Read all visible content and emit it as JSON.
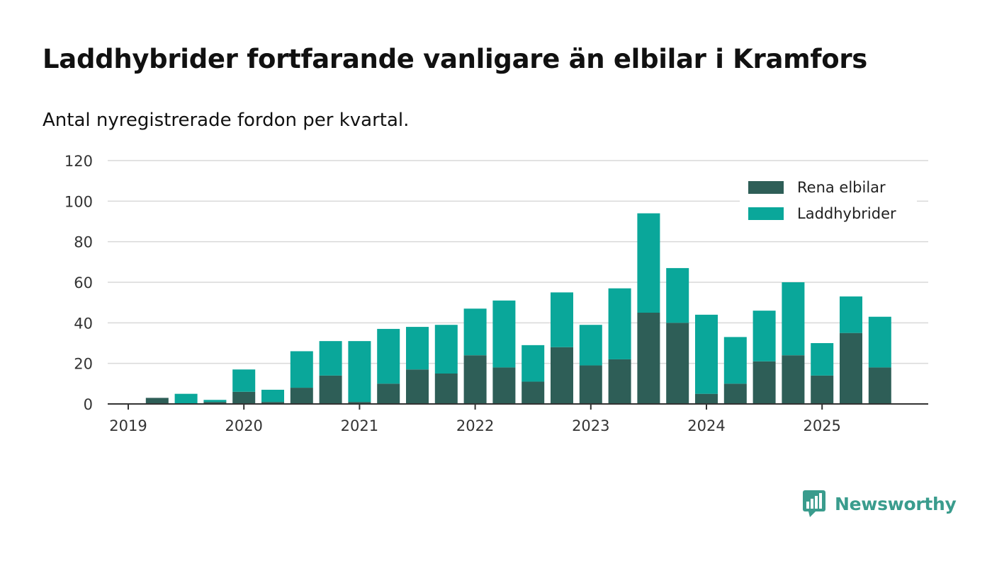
{
  "chart_data": {
    "type": "bar",
    "stacked": true,
    "title": "Laddhybrider fortfarande vanligare än elbilar i Kramfors",
    "subtitle": "Antal nyregistrerade fordon per kvartal.",
    "xlabel": "",
    "ylabel": "",
    "ylim": [
      0,
      120
    ],
    "yticks": [
      0,
      20,
      40,
      60,
      80,
      100,
      120
    ],
    "xticks": [
      "2019",
      "2020",
      "2021",
      "2022",
      "2023",
      "2024",
      "2025"
    ],
    "grid": true,
    "legend_position": "top-right",
    "categories": [
      "2019 Q1",
      "2019 Q2",
      "2019 Q3",
      "2019 Q4",
      "2020 Q1",
      "2020 Q2",
      "2020 Q3",
      "2020 Q4",
      "2021 Q1",
      "2021 Q2",
      "2021 Q3",
      "2021 Q4",
      "2022 Q1",
      "2022 Q2",
      "2022 Q3",
      "2022 Q4",
      "2023 Q1",
      "2023 Q2",
      "2023 Q3",
      "2023 Q4",
      "2024 Q1",
      "2024 Q2",
      "2024 Q3",
      "2024 Q4",
      "2025 Q1",
      "2025 Q2",
      "2025 Q3"
    ],
    "series": [
      {
        "name": "Rena elbilar",
        "color": "#2e5e57",
        "values": [
          0,
          3,
          0,
          1,
          6,
          1,
          8,
          14,
          1,
          10,
          17,
          15,
          24,
          18,
          11,
          28,
          19,
          22,
          45,
          40,
          5,
          10,
          21,
          24,
          14,
          35,
          18
        ]
      },
      {
        "name": "Laddhybrider",
        "color": "#0aa79a",
        "values": [
          0,
          0,
          5,
          1,
          11,
          6,
          18,
          17,
          30,
          27,
          21,
          24,
          23,
          33,
          18,
          27,
          20,
          35,
          49,
          27,
          39,
          23,
          25,
          36,
          16,
          18,
          25
        ]
      }
    ]
  },
  "brand": {
    "name": "Newsworthy"
  }
}
